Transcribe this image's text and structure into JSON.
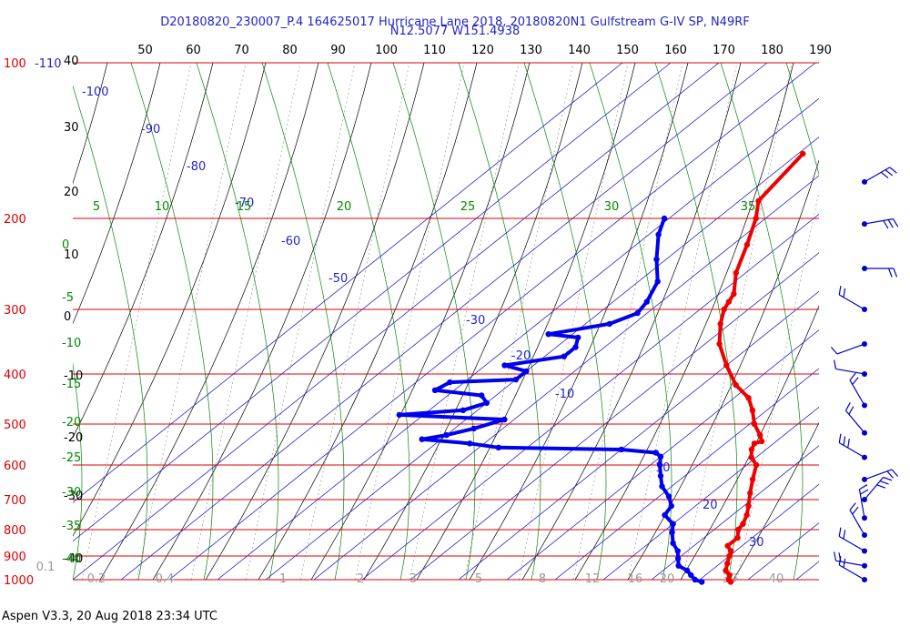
{
  "header": {
    "line1": "D20180820_230007_P.4 164625017 Hurricane Lane 2018, 20180820N1 Gulfstream G-IV SP, N49RF",
    "line2": "N12.5077 W151.4938"
  },
  "footer": {
    "text": "Aspen V3.3, 20 Aug 2018  23:34 UTC"
  },
  "colors": {
    "pressure": "#dd0000",
    "temperature_axis": "#000000",
    "isotherm": "#2222cc",
    "dry_adiabat": "#000000",
    "moist_adiabat": "#008800",
    "mixing_ratio": "#888888",
    "temperature_profile": "#ee0000",
    "dewpoint_profile": "#0000ee",
    "wind": "#0000cc"
  },
  "chart_data": {
    "type": "scatter",
    "title": "",
    "left_pressure_labels": [
      "100",
      "200",
      "300",
      "400",
      "500",
      "600",
      "700",
      "800",
      "900",
      "1000"
    ],
    "top_axis_extra_label": "-110",
    "top_axis_labels": [
      "50",
      "60",
      "70",
      "80",
      "90",
      "100",
      "110",
      "120",
      "130",
      "140",
      "150",
      "160",
      "170",
      "180",
      "190"
    ],
    "left_altitude_labels": [
      "40",
      "30",
      "20",
      "10",
      "0",
      "-10",
      "-20",
      "-30",
      "-40"
    ],
    "isotherm_labels": [
      "-100",
      "-90",
      "-80",
      "-70",
      "-60",
      "-50",
      "-30",
      "-20",
      "-10",
      "10",
      "20",
      "30"
    ],
    "moist_adiabat_top_labels": [
      "5",
      "10",
      "15",
      "20",
      "25",
      "30",
      "35"
    ],
    "moist_adiabat_left_labels": [
      "0",
      "-5",
      "-10",
      "-15",
      "-20",
      "-25",
      "-30",
      "-35",
      "-40"
    ],
    "mixing_ratio_labels": [
      "0.1",
      "0.2",
      "0.4",
      "1",
      "2",
      "3",
      "5",
      "8",
      "12",
      "16",
      "20",
      "30",
      "40"
    ],
    "series": [
      {
        "name": "temperature",
        "color": "#ee0000",
        "points": [
          [
            -69,
            150
          ],
          [
            -66,
            185
          ],
          [
            -62,
            200
          ],
          [
            -57,
            225
          ],
          [
            -52,
            255
          ],
          [
            -47,
            280
          ],
          [
            -46,
            290
          ],
          [
            -45,
            300
          ],
          [
            -42,
            320
          ],
          [
            -37,
            350
          ],
          [
            -30,
            385
          ],
          [
            -23,
            420
          ],
          [
            -17,
            445
          ],
          [
            -13,
            470
          ],
          [
            -9,
            500
          ],
          [
            -5,
            525
          ],
          [
            -3,
            540
          ],
          [
            -4,
            545
          ],
          [
            -3,
            560
          ],
          [
            -1,
            580
          ],
          [
            2,
            600
          ],
          [
            5,
            640
          ],
          [
            8,
            680
          ],
          [
            11,
            720
          ],
          [
            13,
            750
          ],
          [
            14.5,
            780
          ],
          [
            15,
            800
          ],
          [
            17,
            830
          ],
          [
            17,
            860
          ],
          [
            19,
            880
          ],
          [
            20,
            900
          ],
          [
            21.5,
            930
          ],
          [
            23,
            960
          ],
          [
            25,
            980
          ],
          [
            26,
            1000
          ],
          [
            27,
            1010
          ]
        ]
      },
      {
        "name": "dewpoint",
        "color": "#0000ee",
        "points": [
          [
            -81,
            200
          ],
          [
            -78,
            215
          ],
          [
            -72,
            240
          ],
          [
            -66,
            265
          ],
          [
            -63,
            290
          ],
          [
            -62,
            305
          ],
          [
            -65,
            320
          ],
          [
            -75,
            335
          ],
          [
            -68,
            340
          ],
          [
            -66,
            355
          ],
          [
            -66,
            370
          ],
          [
            -76,
            385
          ],
          [
            -70,
            395
          ],
          [
            -70,
            410
          ],
          [
            -83,
            415
          ],
          [
            -84,
            430
          ],
          [
            -73,
            440
          ],
          [
            -70,
            455
          ],
          [
            -73,
            470
          ],
          [
            -85,
            480
          ],
          [
            -62,
            490
          ],
          [
            -66,
            510
          ],
          [
            -70,
            525
          ],
          [
            -74,
            535
          ],
          [
            -63,
            545
          ],
          [
            -56,
            555
          ],
          [
            -30,
            560
          ],
          [
            -22,
            568
          ],
          [
            -20,
            578
          ],
          [
            -18,
            600
          ],
          [
            -15,
            630
          ],
          [
            -12,
            660
          ],
          [
            -8,
            690
          ],
          [
            -5,
            720
          ],
          [
            -4,
            750
          ],
          [
            0,
            780
          ],
          [
            2,
            810
          ],
          [
            5,
            850
          ],
          [
            8,
            880
          ],
          [
            10,
            910
          ],
          [
            12,
            940
          ],
          [
            15,
            960
          ],
          [
            17,
            980
          ],
          [
            19,
            1000
          ],
          [
            21,
            1010
          ]
        ]
      }
    ],
    "wind_barbs": [
      {
        "pressure": 170,
        "direction": 60,
        "speed_kt": 30
      },
      {
        "pressure": 205,
        "direction": 80,
        "speed_kt": 25
      },
      {
        "pressure": 250,
        "direction": 90,
        "speed_kt": 15
      },
      {
        "pressure": 300,
        "direction": 300,
        "speed_kt": 15
      },
      {
        "pressure": 350,
        "direction": 250,
        "speed_kt": 10
      },
      {
        "pressure": 400,
        "direction": 280,
        "speed_kt": 10
      },
      {
        "pressure": 460,
        "direction": 330,
        "speed_kt": 20
      },
      {
        "pressure": 520,
        "direction": 320,
        "speed_kt": 20
      },
      {
        "pressure": 580,
        "direction": 300,
        "speed_kt": 25
      },
      {
        "pressure": 640,
        "direction": 70,
        "speed_kt": 20
      },
      {
        "pressure": 700,
        "direction": 40,
        "speed_kt": 25
      },
      {
        "pressure": 760,
        "direction": 350,
        "speed_kt": 20
      },
      {
        "pressure": 820,
        "direction": 330,
        "speed_kt": 15
      },
      {
        "pressure": 880,
        "direction": 300,
        "speed_kt": 20
      },
      {
        "pressure": 940,
        "direction": 280,
        "speed_kt": 15
      },
      {
        "pressure": 1000,
        "direction": 300,
        "speed_kt": 15
      }
    ]
  }
}
